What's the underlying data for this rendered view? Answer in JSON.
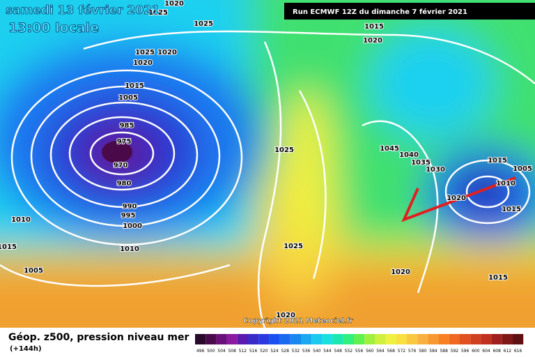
{
  "header": {
    "date": "samedi 13 février 2021",
    "time": "13:00 locale",
    "run": "Run ECMWF 12Z du dimanche 7 février 2021"
  },
  "footer": {
    "title": "Géop. z500, pression niveau mer",
    "lead": "(+144h)",
    "copyright": "Copyright 2021 Meteociel.fr"
  },
  "colorbar": {
    "ticks": [
      496,
      500,
      504,
      508,
      512,
      516,
      520,
      524,
      528,
      532,
      536,
      540,
      544,
      548,
      552,
      556,
      560,
      564,
      568,
      572,
      576,
      580,
      584,
      588,
      592,
      596,
      600,
      604,
      608,
      612,
      616
    ],
    "colors": [
      "#2a0a2a",
      "#4a0a4a",
      "#6a107a",
      "#8a1aa0",
      "#5a1ab0",
      "#3a2ac8",
      "#2a3ae0",
      "#1a50f0",
      "#1a6af0",
      "#1a88f0",
      "#1aa8f0",
      "#1ac8f0",
      "#1ae0e0",
      "#1ae8b0",
      "#30f080",
      "#60f050",
      "#a0f040",
      "#d0f040",
      "#f0f040",
      "#f8e040",
      "#f8c840",
      "#f8b040",
      "#f89830",
      "#f88020",
      "#f06820",
      "#e05020",
      "#d04020",
      "#c03020",
      "#a02020",
      "#801818",
      "#601010"
    ]
  },
  "isobars": [
    "1020",
    "1025",
    "1025",
    "1015",
    "1020",
    "1025",
    "1020",
    "1020",
    "1015",
    "1005",
    "985",
    "975",
    "970",
    "980",
    "990",
    "995",
    "1000",
    "1010",
    "1010",
    "1015",
    "1005",
    "1025",
    "1045",
    "1040",
    "1035",
    "1030",
    "1015",
    "1005",
    "1010",
    "1020",
    "1015",
    "1025",
    "1020",
    "1015",
    "1020"
  ]
}
